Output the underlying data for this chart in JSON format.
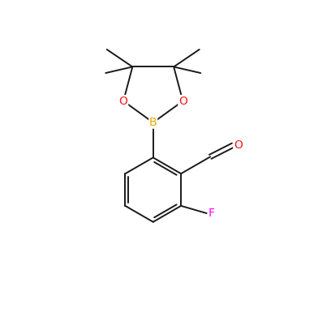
{
  "background_color": "#ffffff",
  "bond_color": "#1a1a1a",
  "atom_colors": {
    "B": "#e6a800",
    "O": "#ff1a1a",
    "F": "#ff00ff",
    "C": "#1a1a1a"
  },
  "font_size": 10,
  "line_width": 1.4,
  "figure_size": [
    4.08,
    4.07
  ],
  "dpi": 100
}
